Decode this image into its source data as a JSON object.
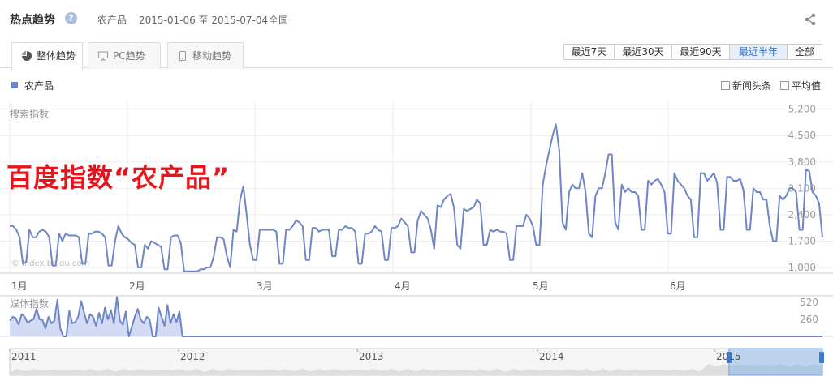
{
  "header": {
    "title": "热点趋势",
    "keyword": "农产品",
    "date_range": "2015-01-06 至 2015-07-04",
    "region": "全国"
  },
  "tabs": [
    {
      "label": "整体趋势",
      "icon": "pie-icon",
      "active": true
    },
    {
      "label": "PC趋势",
      "icon": "monitor-icon",
      "active": false
    },
    {
      "label": "移动趋势",
      "icon": "mobile-icon",
      "active": false
    }
  ],
  "ranges": [
    {
      "label": "最近7天",
      "active": false
    },
    {
      "label": "最近30天",
      "active": false
    },
    {
      "label": "最近90天",
      "active": false
    },
    {
      "label": "最近半年",
      "active": true
    },
    {
      "label": "全部",
      "active": false
    }
  ],
  "legend": {
    "label": "农产品",
    "color": "#6e86c6"
  },
  "options": {
    "news": "新闻头条",
    "average": "平均值"
  },
  "overlay_text": "百度指数“农产品”",
  "chart_data": [
    {
      "type": "line",
      "title": "搜索指数",
      "watermark": "© index.baidu.com",
      "yticks": [
        1000,
        1700,
        2400,
        3100,
        3800,
        4500,
        5200
      ],
      "ylim": [
        850,
        5300
      ],
      "xticks": [
        "1月",
        "2月",
        "3月",
        "4月",
        "5月",
        "6月"
      ],
      "grid": true,
      "series": [
        {
          "name": "农产品",
          "color": "#6e86c6",
          "values": [
            2100,
            2100,
            2000,
            1800,
            1100,
            1150,
            2000,
            1800,
            1800,
            1950,
            2000,
            1950,
            1800,
            1050,
            1050,
            1900,
            1700,
            1900,
            1850,
            1850,
            1850,
            1800,
            1100,
            1100,
            1900,
            1900,
            1950,
            1950,
            1900,
            1800,
            1050,
            1050,
            1700,
            2100,
            1900,
            1800,
            1750,
            1650,
            1600,
            1000,
            1000,
            1600,
            1500,
            1700,
            1650,
            1600,
            1550,
            950,
            950,
            1800,
            1850,
            1850,
            1650,
            900,
            900,
            900,
            900,
            900,
            950,
            950,
            1000,
            1000,
            1300,
            1800,
            1800,
            1750,
            1300,
            1000,
            2000,
            1950,
            2800,
            3150,
            2400,
            1600,
            1200,
            1200,
            2000,
            2000,
            2000,
            2000,
            2000,
            1950,
            1100,
            1100,
            2000,
            2000,
            2100,
            2250,
            2200,
            2100,
            1200,
            1200,
            2050,
            2050,
            1950,
            2000,
            2000,
            2000,
            1300,
            1300,
            2000,
            2000,
            2100,
            2050,
            2050,
            1950,
            1100,
            1100,
            1900,
            1900,
            1950,
            2100,
            2000,
            1950,
            1200,
            1200,
            2050,
            2050,
            2100,
            2300,
            2200,
            2100,
            1400,
            1400,
            2250,
            2500,
            2400,
            2300,
            2000,
            1500,
            2650,
            2600,
            2800,
            2900,
            2950,
            2600,
            1600,
            1500,
            2550,
            2500,
            2550,
            2600,
            2800,
            2700,
            1600,
            1600,
            2000,
            1950,
            2000,
            1950,
            1950,
            1900,
            1200,
            1200,
            2100,
            2100,
            2100,
            2400,
            2300,
            2100,
            1600,
            1600,
            3200,
            3700,
            4100,
            4500,
            4800,
            4100,
            2200,
            2000,
            3000,
            3200,
            3100,
            3100,
            3500,
            3000,
            1900,
            1800,
            2900,
            3100,
            3100,
            3500,
            4000,
            4000,
            2200,
            2000,
            3200,
            3000,
            3100,
            3000,
            3000,
            2900,
            2000,
            2000,
            3300,
            3200,
            3300,
            3350,
            3200,
            3000,
            1900,
            1900,
            3500,
            3300,
            3200,
            3100,
            2900,
            2800,
            1800,
            1800,
            3500,
            3500,
            3300,
            3400,
            3500,
            3250,
            2000,
            2000,
            3400,
            3400,
            3300,
            3300,
            3350,
            3050,
            2000,
            2000,
            3100,
            3000,
            3000,
            2800,
            2800,
            2100,
            1700,
            1700,
            2900,
            2800,
            2900,
            3100,
            3100,
            3000,
            2000,
            2000,
            3600,
            3550,
            3000,
            2900,
            2700,
            1800
          ]
        }
      ]
    },
    {
      "type": "area",
      "title": "媒体指数",
      "yticks": [
        260,
        520
      ],
      "series": [
        {
          "name": "农产品",
          "color": "#6e86c6",
          "values": [
            240,
            300,
            280,
            180,
            340,
            300,
            210,
            240,
            260,
            420,
            260,
            250,
            120,
            300,
            200,
            240,
            560,
            120,
            0,
            0,
            390,
            200,
            220,
            300,
            540,
            360,
            200,
            340,
            300,
            160,
            360,
            200,
            440,
            260,
            400,
            200,
            600,
            240,
            180,
            380,
            0,
            140,
            300,
            420,
            260,
            200,
            300,
            260,
            0,
            0,
            440,
            300,
            160,
            480,
            200,
            340,
            220,
            380,
            0,
            0,
            0,
            0,
            0,
            0,
            0,
            0,
            0,
            0,
            0,
            0,
            0,
            0,
            0,
            0,
            0,
            0,
            0,
            0,
            0,
            0,
            0,
            0,
            0,
            0,
            0,
            0,
            0,
            0,
            0,
            0,
            0,
            0,
            0,
            0,
            0,
            0,
            0,
            0,
            0,
            0,
            0,
            0,
            0,
            0,
            0,
            0,
            0,
            0,
            0,
            0,
            0,
            0,
            0,
            0,
            0,
            0,
            0,
            0,
            0,
            0,
            0,
            0,
            0,
            0,
            0,
            0,
            0,
            0,
            0,
            0,
            0,
            0,
            0,
            0,
            0,
            0,
            0,
            0,
            0,
            0,
            0,
            0,
            0,
            0,
            0,
            0,
            0,
            0,
            0,
            0,
            0,
            0,
            0,
            0,
            0,
            0,
            0,
            0,
            0,
            0,
            0,
            0,
            0,
            0,
            0,
            0,
            0,
            0,
            0,
            0,
            0,
            0,
            0,
            0,
            0,
            0,
            0,
            0,
            0,
            0,
            0,
            0,
            0,
            0,
            0,
            0,
            0,
            0,
            0,
            0,
            0,
            0,
            0,
            0,
            0,
            0,
            0,
            0,
            0,
            0,
            0,
            0,
            0,
            0,
            0,
            0,
            0,
            0,
            0,
            0,
            0,
            0,
            0,
            0,
            0,
            0,
            0,
            0,
            0,
            0,
            0,
            0,
            0,
            0,
            0,
            0,
            0,
            0,
            0,
            0,
            0,
            0,
            0,
            0,
            0,
            0,
            0,
            0,
            0,
            0,
            0,
            0,
            0,
            0,
            0,
            0,
            0,
            0,
            0,
            0,
            0,
            0,
            0,
            0,
            0,
            0,
            0,
            0,
            0,
            0,
            0,
            0,
            0,
            0,
            0,
            0,
            0,
            0,
            0,
            0,
            0,
            0,
            0,
            0
          ]
        }
      ]
    },
    {
      "type": "area",
      "title": "timeline-navigator",
      "xticks": [
        "2011",
        "2012",
        "2013",
        "2014",
        "2015"
      ],
      "selection_fraction": [
        0.885,
        1.0
      ]
    }
  ]
}
